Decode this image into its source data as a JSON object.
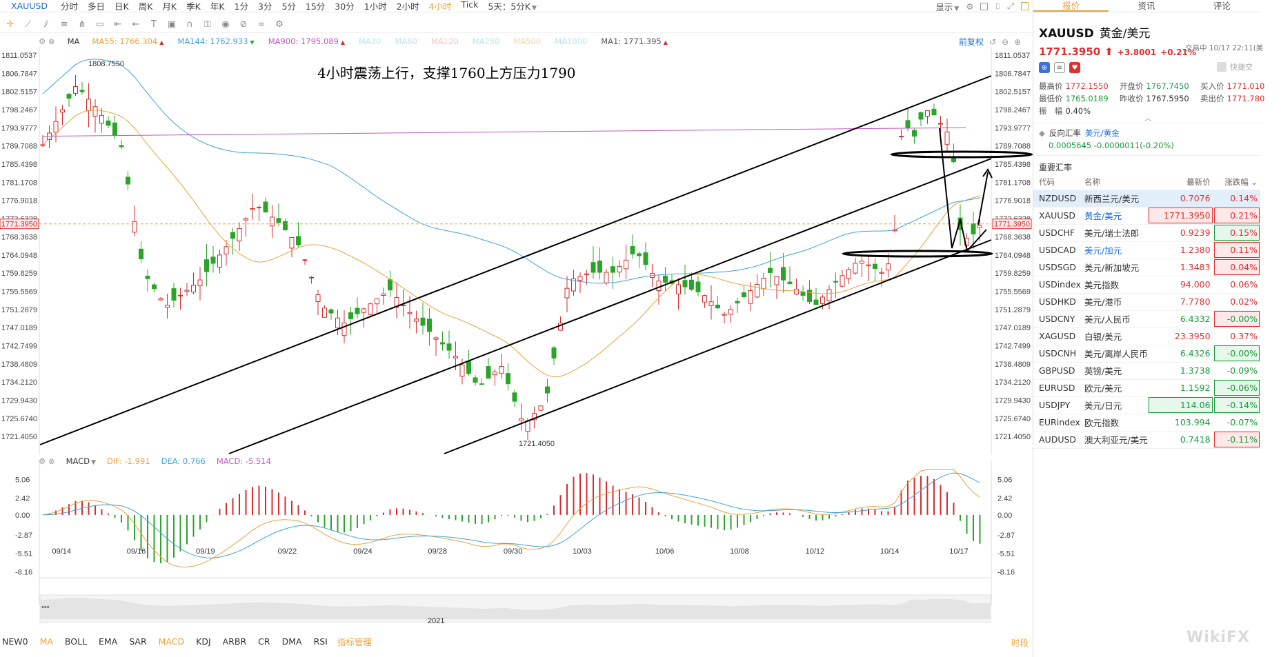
{
  "toolbar": {
    "symbol": "XAUUSD",
    "timeframes": [
      "分时",
      "多日",
      "日K",
      "周K",
      "月K",
      "季K",
      "年K",
      "1分",
      "3分",
      "5分",
      "15分",
      "30分",
      "1小时",
      "2小时",
      "4小时",
      "Tick"
    ],
    "active_timeframe": "4小时",
    "combo": "5天：5分K",
    "display_label": "显示"
  },
  "ma_bar": {
    "ma_label": "MA",
    "items": [
      {
        "text": "MA55: 1766.304",
        "color": "#e8a33b",
        "arrow": "▲"
      },
      {
        "text": "MA144: 1762.933",
        "color": "#3fa3d6",
        "arrow": "▼"
      },
      {
        "text": "MA900: 1795.089",
        "color": "#c257c2",
        "arrow": "▲"
      },
      {
        "text": "MA30",
        "color": "#b9e3f3",
        "arrow": ""
      },
      {
        "text": "MA60",
        "color": "#b9e3f3",
        "arrow": ""
      },
      {
        "text": "MA120",
        "color": "#f5c5c5",
        "arrow": ""
      },
      {
        "text": "MA250",
        "color": "#b9e3f3",
        "arrow": ""
      },
      {
        "text": "MA500",
        "color": "#f5d6a8",
        "arrow": ""
      },
      {
        "text": "MA1000",
        "color": "#b9e3f3",
        "arrow": ""
      },
      {
        "text": "MA1: 1771.395",
        "color": "#555555",
        "arrow": "▲"
      }
    ]
  },
  "restore_label": "前复权",
  "macd_bar": {
    "label": "MACD",
    "dif": "DIF: -1.991",
    "dea": "DEA: 0.766",
    "macd": "MACD: -5.514"
  },
  "annotation": "4小时震荡上行，支撑1760上方压力1790",
  "chart_data": {
    "type": "candlestick",
    "symbol": "XAUUSD",
    "period": "4小时",
    "y_ticks": [
      "1811.0537",
      "1806.7847",
      "1802.5157",
      "1798.2467",
      "1793.9777",
      "1789.7088",
      "1785.4398",
      "1781.1708",
      "1776.9018",
      "1772.6328",
      "1768.3638",
      "1764.0948",
      "1759.8259",
      "1755.5569",
      "1751.2879",
      "1747.0189",
      "1742.7499",
      "1738.4809",
      "1734.2120",
      "1729.9430",
      "1725.6740",
      "1721.4050"
    ],
    "ylim": [
      1719.0,
      1813.0
    ],
    "current_price": "1771.3950",
    "high_label": "1808.7550",
    "low_label": "1721.4050",
    "x_labels": [
      "09/14",
      "09/16",
      "09/19",
      "09/22",
      "09/24",
      "09/28",
      "09/30",
      "10/03",
      "10/06",
      "10/08",
      "10/12",
      "10/14",
      "10/17"
    ],
    "year_label": "2021",
    "macd_ticks": [
      "5.06",
      "2.42",
      "0.00",
      "-2.87",
      "-5.51",
      "-8.16"
    ],
    "macd_ylim": [
      -9.0,
      7.0
    ],
    "colors": {
      "up": "#d62c2c",
      "down": "#2aa52a",
      "ma55": "#e8a33b",
      "ma144": "#3fa3d6",
      "ma900": "#c257c2",
      "dif": "#e8a33b",
      "dea": "#3fa3d6"
    }
  },
  "indicators": [
    "NEW0",
    "MA",
    "BOLL",
    "EMA",
    "SAR",
    "MACD",
    "KDJ",
    "ARBR",
    "CR",
    "DMA",
    "RSI"
  ],
  "indicator_active": [
    "MA",
    "MACD"
  ],
  "indicator_manage": "指标管理",
  "time_btn": "时段",
  "panel": {
    "tabs": [
      "报价",
      "资讯",
      "评论"
    ],
    "symbol": "XAUUSD",
    "name_cn": "黄金/美元",
    "last": "1771.3950",
    "change": "+3.8001",
    "change_pct": "+0.21%",
    "status": "交易中 10/17 22:11(美",
    "shortcut": "快捷交",
    "stats": [
      [
        {
          "l": "最高价",
          "v": "1772.1550",
          "c": "up"
        },
        {
          "l": "开盘价",
          "v": "1767.7450",
          "c": "dn"
        },
        {
          "l": "买入价",
          "v": "1771.010",
          "c": "up"
        }
      ],
      [
        {
          "l": "最低价",
          "v": "1765.0189",
          "c": "dn"
        },
        {
          "l": "昨收价",
          "v": "1767.5950",
          "c": ""
        },
        {
          "l": "卖出价",
          "v": "1771.780",
          "c": "up"
        }
      ],
      [
        {
          "l": "振　幅",
          "v": "0.40%",
          "c": ""
        }
      ]
    ],
    "reverse_label": "反向汇率",
    "reverse_pair": "美元/黄金",
    "reverse_value": "0.0005645 -0.0000011(-0.20%)",
    "section": "重要汇率",
    "table_headers": [
      "代码",
      "名称",
      "最新价",
      "涨跌幅"
    ],
    "rows": [
      {
        "code": "NZDUSD",
        "name": "新西兰元/美元",
        "last": "0.7076",
        "pct": "0.14%",
        "dir": "up",
        "box": "",
        "sel": true
      },
      {
        "code": "XAUUSD",
        "name": "黄金/美元",
        "last": "1771.3950",
        "pct": "0.21%",
        "dir": "up",
        "box": "boxr",
        "sel": false
      },
      {
        "code": "USDCHF",
        "name": "美元/瑞士法郎",
        "last": "0.9239",
        "pct": "0.15%",
        "dir": "up",
        "box": "pctg",
        "sel": false
      },
      {
        "code": "USDCAD",
        "name": "美元/加元",
        "last": "1.2380",
        "pct": "0.11%",
        "dir": "up",
        "box": "pctr",
        "sel": false
      },
      {
        "code": "USDSGD",
        "name": "美元/新加坡元",
        "last": "1.3483",
        "pct": "0.04%",
        "dir": "up",
        "box": "pctr",
        "sel": false
      },
      {
        "code": "USDindex",
        "name": "美元指数",
        "last": "94.000",
        "pct": "0.06%",
        "dir": "up",
        "box": "",
        "sel": false
      },
      {
        "code": "USDHKD",
        "name": "美元/港币",
        "last": "7.7780",
        "pct": "0.02%",
        "dir": "up",
        "box": "",
        "sel": false
      },
      {
        "code": "USDCNY",
        "name": "美元/人民币",
        "last": "6.4332",
        "pct": "-0.00%",
        "dir": "dn",
        "box": "pctr",
        "sel": false
      },
      {
        "code": "XAGUSD",
        "name": "白银/美元",
        "last": "23.3950",
        "pct": "0.37%",
        "dir": "up",
        "box": "",
        "sel": false
      },
      {
        "code": "USDCNH",
        "name": "美元/离岸人民币",
        "last": "6.4326",
        "pct": "-0.00%",
        "dir": "dn",
        "box": "pctg",
        "sel": false
      },
      {
        "code": "GBPUSD",
        "name": "英镑/美元",
        "last": "1.3738",
        "pct": "-0.09%",
        "dir": "dn",
        "box": "",
        "sel": false
      },
      {
        "code": "EURUSD",
        "name": "欧元/美元",
        "last": "1.1592",
        "pct": "-0.06%",
        "dir": "dn",
        "box": "pctg",
        "sel": false
      },
      {
        "code": "USDJPY",
        "name": "美元/日元",
        "last": "114.06",
        "pct": "-0.14%",
        "dir": "dn",
        "box": "boxg",
        "sel": false
      },
      {
        "code": "EURindex",
        "name": "欧元指数",
        "last": "103.994",
        "pct": "-0.07%",
        "dir": "dn",
        "box": "",
        "sel": false
      },
      {
        "code": "AUDUSD",
        "name": "澳大利亚元/美元",
        "last": "0.7418",
        "pct": "-0.11%",
        "dir": "dn",
        "box": "pctr",
        "sel": false
      }
    ],
    "watermark": "WikiFX"
  }
}
